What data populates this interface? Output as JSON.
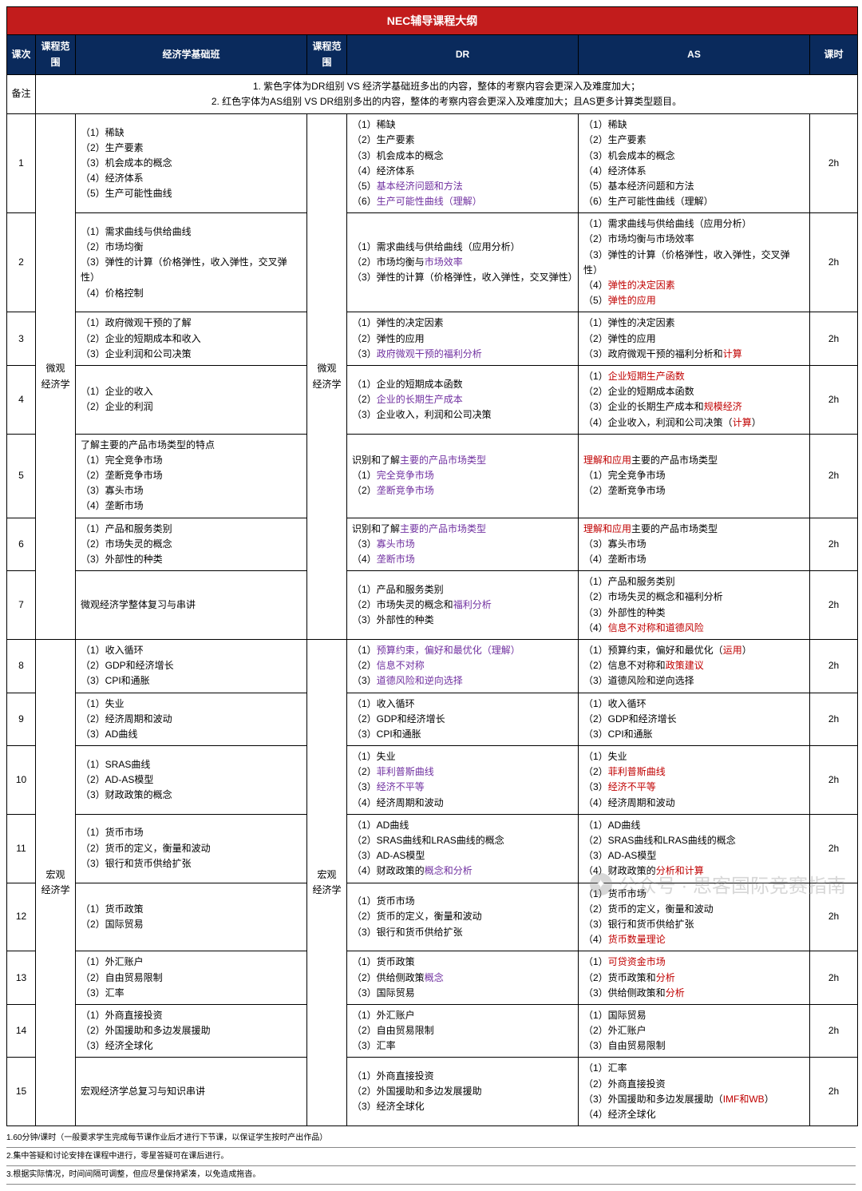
{
  "title": "NEC辅导课程大纲",
  "headers": {
    "lesson": "课次",
    "scope": "课程范围",
    "basic": "经济学基础班",
    "scope2": "课程范围",
    "dr": "DR",
    "as": "AS",
    "hours": "课时"
  },
  "note_label": "备注",
  "notes": [
    "1. 紫色字体为DR组别 VS 经济学基础班多出的内容，整体的考察内容会更深入及难度加大；",
    "2. 红色字体为AS组别 VS DR组别多出的内容，整体的考察内容会更深入及难度加大；且AS更多计算类型题目。"
  ],
  "colors": {
    "title_bg": "#c21c1c",
    "header_bg": "#0a2a5c",
    "purple": "#7030a0",
    "red": "#c00000",
    "border": "#000000"
  },
  "sections": [
    {
      "scope": "微观\n经济学",
      "scope_dr": "微观\n经济学",
      "span": 7
    },
    {
      "scope": "宏观\n经济学",
      "scope_dr": "宏观\n经济学",
      "span": 8
    }
  ],
  "rows": [
    {
      "n": "1",
      "hours": "2h",
      "basic": [
        [
          "（1）稀缺"
        ],
        [
          "（2）生产要素"
        ],
        [
          "（3）机会成本的概念"
        ],
        [
          "（4）经济体系"
        ],
        [
          "（5）生产可能性曲线"
        ]
      ],
      "dr": [
        [
          "（1）稀缺"
        ],
        [
          "（2）生产要素"
        ],
        [
          "（3）机会成本的概念"
        ],
        [
          "（4）经济体系"
        ],
        [
          "（5）",
          "基本经济问题和方法",
          "p"
        ],
        [
          "（6）",
          "生产可能性曲线（理解）",
          "p"
        ]
      ],
      "as": [
        [
          "（1）稀缺"
        ],
        [
          "（2）生产要素"
        ],
        [
          "（3）机会成本的概念"
        ],
        [
          "（4）经济体系"
        ],
        [
          "（5）基本经济问题和方法"
        ],
        [
          "（6）生产可能性曲线（理解）"
        ]
      ]
    },
    {
      "n": "2",
      "hours": "2h",
      "basic": [
        [
          "（1）需求曲线与供给曲线"
        ],
        [
          "（2）市场均衡"
        ],
        [
          "（3）弹性的计算（价格弹性，收入弹性，交叉弹性）"
        ],
        [
          "（4）价格控制"
        ]
      ],
      "dr": [
        [
          "（1）需求曲线与供给曲线（应用分析）"
        ],
        [
          "（2）市场均衡与",
          "市场效率",
          "p"
        ],
        [
          "（3）弹性的计算（价格弹性，收入弹性，交叉弹性）"
        ]
      ],
      "as": [
        [
          "（1）需求曲线与供给曲线（应用分析）"
        ],
        [
          "（2）市场均衡与市场效率"
        ],
        [
          "（3）弹性的计算（价格弹性，收入弹性，交叉弹性）"
        ],
        [
          "（4）",
          "弹性的决定因素",
          "r"
        ],
        [
          "（5）",
          "弹性的应用",
          "r"
        ]
      ]
    },
    {
      "n": "3",
      "hours": "2h",
      "basic": [
        [
          "（1）政府微观干预的了解"
        ],
        [
          "（2）企业的短期成本和收入"
        ],
        [
          "（3）企业利润和公司决策"
        ]
      ],
      "dr": [
        [
          "（1）弹性的决定因素"
        ],
        [
          "（2）弹性的应用"
        ],
        [
          "（3）",
          "政府微观干预的福利分析",
          "p"
        ]
      ],
      "as": [
        [
          "（1）弹性的决定因素"
        ],
        [
          "（2）弹性的应用"
        ],
        [
          "（3）政府微观干预的福利分析和",
          "计算",
          "r"
        ]
      ]
    },
    {
      "n": "4",
      "hours": "2h",
      "basic": [
        [
          "（1）企业的收入"
        ],
        [
          "（2）企业的利润"
        ]
      ],
      "dr": [
        [
          "（1）企业的短期成本函数"
        ],
        [
          "（2）",
          "企业的长期生产成本",
          "p"
        ],
        [
          "（3）企业收入，利润和公司决策"
        ]
      ],
      "as": [
        [
          "（1）",
          "企业短期生产函数",
          "r"
        ],
        [
          "（2）企业的短期成本函数"
        ],
        [
          "（3）企业的长期生产成本和",
          "规模经济",
          "r"
        ],
        [
          "（4）企业收入，利润和公司决策（",
          "计算",
          "r",
          "）"
        ]
      ]
    },
    {
      "n": "5",
      "hours": "2h",
      "basic": [
        [
          "了解主要的产品市场类型的特点"
        ],
        [
          "（1）完全竞争市场"
        ],
        [
          "（2）垄断竞争市场"
        ],
        [
          "（3）寡头市场"
        ],
        [
          "（4）垄断市场"
        ]
      ],
      "dr": [
        [
          "识别和了解",
          "主要的",
          "p",
          "产品市场类型",
          "p"
        ],
        [
          "（1）",
          "完全竞争市场",
          "p"
        ],
        [
          "（2）",
          "垄断竞争市场",
          "p"
        ]
      ],
      "as": [
        [
          "理解和应用",
          "主要的产品市场类型",
          "r-prefix"
        ],
        [
          "（1）完全竞争市场"
        ],
        [
          "（2）垄断竞争市场"
        ]
      ]
    },
    {
      "n": "6",
      "hours": "2h",
      "basic": [
        [
          "（1）产品和服务类别"
        ],
        [
          "（2）市场失灵的概念"
        ],
        [
          "（3）外部性的种类"
        ]
      ],
      "dr": [
        [
          "识别和了解",
          "主要的",
          "p",
          "产品市场类型",
          "p"
        ],
        [
          "（3）",
          "寡头市场",
          "p"
        ],
        [
          "（4）",
          "垄断市场",
          "p"
        ]
      ],
      "as": [
        [
          "理解和应用",
          "主要的产品市场类型",
          "r-prefix"
        ],
        [
          "（3）寡头市场"
        ],
        [
          "（4）垄断市场"
        ]
      ]
    },
    {
      "n": "7",
      "hours": "2h",
      "basic": [
        [
          "微观经济学整体复习与串讲"
        ]
      ],
      "dr": [
        [
          "（1）产品和服务类别"
        ],
        [
          "（2）市场失灵的概念和",
          "福利分析",
          "p"
        ],
        [
          "（3）外部性的种类"
        ]
      ],
      "as": [
        [
          "（1）产品和服务类别"
        ],
        [
          "（2）市场失灵的概念和福利分析"
        ],
        [
          "（3）外部性的种类"
        ],
        [
          "（4）",
          "信息不对称和道德风险",
          "r"
        ]
      ]
    },
    {
      "n": "8",
      "hours": "2h",
      "basic": [
        [
          "（1）收入循环"
        ],
        [
          "（2）GDP和经济增长"
        ],
        [
          "（3）CPI和通胀"
        ]
      ],
      "dr": [
        [
          "（1）",
          "预算约束，偏好和最优化（理解）",
          "p"
        ],
        [
          "（2）",
          "信息不对称",
          "p"
        ],
        [
          "（3）",
          "道德风险和逆向选择",
          "p"
        ]
      ],
      "as": [
        [
          "（1）预算约束，偏好和最优化（",
          "运用",
          "r",
          "）"
        ],
        [
          "（2）信息不对称和",
          "政策建议",
          "r"
        ],
        [
          "（3）道德风险和逆向选择"
        ]
      ]
    },
    {
      "n": "9",
      "hours": "2h",
      "basic": [
        [
          "（1）失业"
        ],
        [
          "（2）经济周期和波动"
        ],
        [
          "（3）AD曲线"
        ]
      ],
      "dr": [
        [
          "（1）收入循环"
        ],
        [
          "（2）GDP和经济增长"
        ],
        [
          "（3）CPI和通胀"
        ]
      ],
      "as": [
        [
          "（1）收入循环"
        ],
        [
          "（2）GDP和经济增长"
        ],
        [
          "（3）CPI和通胀"
        ]
      ]
    },
    {
      "n": "10",
      "hours": "2h",
      "basic": [
        [
          "（1）SRAS曲线"
        ],
        [
          "（2）AD-AS模型"
        ],
        [
          "（3）财政政策的概念"
        ]
      ],
      "dr": [
        [
          "（1）失业"
        ],
        [
          "（2）",
          "菲利普斯曲线",
          "p"
        ],
        [
          "（3）",
          "经济不平等",
          "p"
        ],
        [
          "（4）经济周期和波动"
        ]
      ],
      "as": [
        [
          "（1）失业"
        ],
        [
          "（2）",
          "菲利普斯曲线",
          "r"
        ],
        [
          "（3）",
          "经济不平等",
          "r"
        ],
        [
          "（4）经济周期和波动"
        ]
      ]
    },
    {
      "n": "11",
      "hours": "2h",
      "basic": [
        [
          "（1）货币市场"
        ],
        [
          "（2）货币的定义，衡量和波动"
        ],
        [
          "（3）银行和货币供给扩张"
        ]
      ],
      "dr": [
        [
          "（1）AD曲线"
        ],
        [
          "（2）SRAS曲线和LRAS曲线的概念"
        ],
        [
          "（3）AD-AS模型"
        ],
        [
          "（4）财政政策的",
          "概念和分析",
          "p"
        ]
      ],
      "as": [
        [
          "（1）AD曲线"
        ],
        [
          "（2）SRAS曲线和LRAS曲线的概念"
        ],
        [
          "（3）AD-AS模型"
        ],
        [
          "（4）财政政策的",
          "分析和计算",
          "r"
        ]
      ]
    },
    {
      "n": "12",
      "hours": "2h",
      "basic": [
        [
          "（1）货币政策"
        ],
        [
          "（2）国际贸易"
        ]
      ],
      "dr": [
        [
          "（1）货币市场"
        ],
        [
          "（2）货币的定义，衡量和波动"
        ],
        [
          "（3）银行和货币供给扩张"
        ]
      ],
      "as": [
        [
          "（1）货币市场"
        ],
        [
          "（2）货币的定义，衡量和波动"
        ],
        [
          "（3）银行和货币供给扩张"
        ],
        [
          "（4）",
          "货币数量理论",
          "r"
        ]
      ]
    },
    {
      "n": "13",
      "hours": "2h",
      "basic": [
        [
          "（1）外汇账户"
        ],
        [
          "（2）自由贸易限制"
        ],
        [
          "（3）汇率"
        ]
      ],
      "dr": [
        [
          "（1）货币政策"
        ],
        [
          "（2）供给侧政策",
          "概念",
          "p"
        ],
        [
          "（3）国际贸易"
        ]
      ],
      "as": [
        [
          "（1）",
          "可贷资金市场",
          "r"
        ],
        [
          "（2）货币政策和",
          "分析",
          "r"
        ],
        [
          "（3）供给侧政策和",
          "分析",
          "r"
        ]
      ]
    },
    {
      "n": "14",
      "hours": "2h",
      "basic": [
        [
          "（1）外商直接投资"
        ],
        [
          "（2）外国援助和多边发展援助"
        ],
        [
          "（3）经济全球化"
        ]
      ],
      "dr": [
        [
          "（1）外汇账户"
        ],
        [
          "（2）自由贸易限制"
        ],
        [
          "（3）汇率"
        ]
      ],
      "as": [
        [
          "（1）国际贸易"
        ],
        [
          "（2）外汇账户"
        ],
        [
          "（3）自由贸易限制"
        ]
      ]
    },
    {
      "n": "15",
      "hours": "2h",
      "basic": [
        [
          "宏观经济学总复习与知识串讲"
        ]
      ],
      "dr": [
        [
          "（1）外商直接投资"
        ],
        [
          "（2）外国援助和多边发展援助"
        ],
        [
          "（3）经济全球化"
        ]
      ],
      "as": [
        [
          "（1）汇率"
        ],
        [
          "（2）外商直接投资"
        ],
        [
          "（3）外国援助和多边发展援助（",
          "IMF和WB",
          "r",
          "）"
        ],
        [
          "（4）经济全球化"
        ]
      ]
    }
  ],
  "footnotes": [
    "1.60分钟/课时（一般要求学生完成每节课作业后才进行下节课，以保证学生按时产出作品）",
    "2.集中答疑和讨论安排在课程中进行，零星答疑可在课后进行。",
    "3.根据实际情况，时间间隔可调整，但应尽量保持紧凑，以免造成拖沓。"
  ],
  "watermark": {
    "label": "公众号 · 思客国际竞赛指南"
  }
}
